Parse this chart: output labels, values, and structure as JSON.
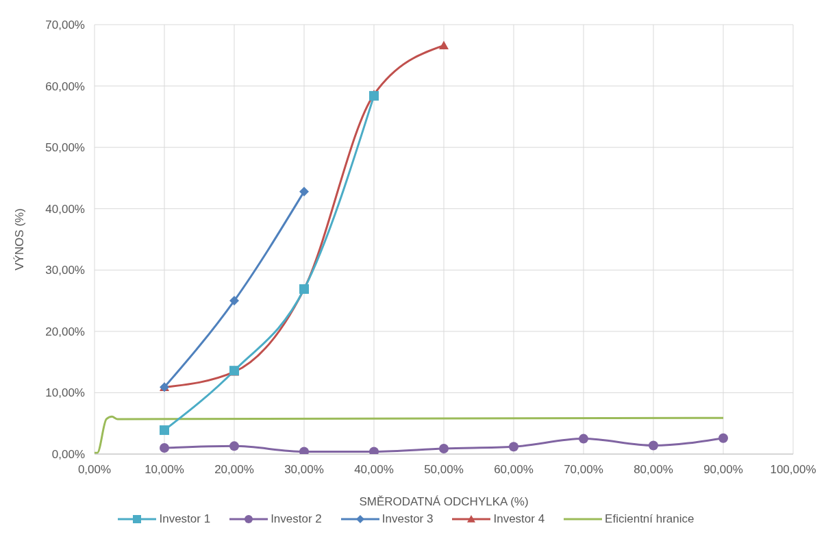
{
  "chart_data": {
    "type": "line",
    "xlabel": "SMĚRODATNÁ ODCHYLKA (%)",
    "ylabel": "VÝNOS (%)",
    "xlim": [
      0,
      100
    ],
    "xticks": [
      {
        "value": 0,
        "label": "0,00%"
      },
      {
        "value": 10,
        "label": "10,00%"
      },
      {
        "value": 20,
        "label": "20,00%"
      },
      {
        "value": 30,
        "label": "30,00%"
      },
      {
        "value": 40,
        "label": "40,00%"
      },
      {
        "value": 50,
        "label": "50,00%"
      },
      {
        "value": 60,
        "label": "60,00%"
      },
      {
        "value": 70,
        "label": "70,00%"
      },
      {
        "value": 80,
        "label": "80,00%"
      },
      {
        "value": 90,
        "label": "90,00%"
      },
      {
        "value": 100,
        "label": "100,00%"
      }
    ],
    "ylim": [
      0,
      70
    ],
    "yticks": [
      {
        "value": 0,
        "label": "0,00%"
      },
      {
        "value": 10,
        "label": "10,00%"
      },
      {
        "value": 20,
        "label": "20,00%"
      },
      {
        "value": 30,
        "label": "30,00%"
      },
      {
        "value": 40,
        "label": "40,00%"
      },
      {
        "value": 50,
        "label": "50,00%"
      },
      {
        "value": 60,
        "label": "60,00%"
      },
      {
        "value": 70,
        "label": "70,00%"
      }
    ],
    "grid": true,
    "legend": "bottom",
    "line_style": "solid",
    "series": [
      {
        "name": "Investor 1",
        "color": "#4bacc6",
        "marker": "square",
        "x": [
          10,
          20,
          30,
          40
        ],
        "values": [
          3.9,
          13.6,
          26.9,
          58.4
        ]
      },
      {
        "name": "Investor 2",
        "color": "#8064a2",
        "marker": "circle",
        "x": [
          10,
          20,
          30,
          40,
          50,
          60,
          70,
          80,
          90
        ],
        "values": [
          1.0,
          1.3,
          0.4,
          0.4,
          0.9,
          1.2,
          2.5,
          1.4,
          2.6
        ]
      },
      {
        "name": "Investor 3",
        "color": "#4f81bd",
        "marker": "diamond",
        "x": [
          10,
          20,
          30
        ],
        "values": [
          10.9,
          25.0,
          42.8
        ]
      },
      {
        "name": "Investor 4",
        "color": "#c0504d",
        "marker": "triangle",
        "x": [
          10,
          20,
          30,
          40,
          50
        ],
        "values": [
          10.9,
          13.4,
          26.9,
          58.6,
          66.6
        ]
      },
      {
        "name": "Eficientní hranice",
        "color": "#9bbb59",
        "marker": "none",
        "x": [
          0,
          0.4,
          1.7,
          2.5,
          3.3,
          90
        ],
        "values": [
          0.2,
          0.2,
          5.7,
          6.1,
          5.7,
          5.9
        ]
      }
    ]
  }
}
